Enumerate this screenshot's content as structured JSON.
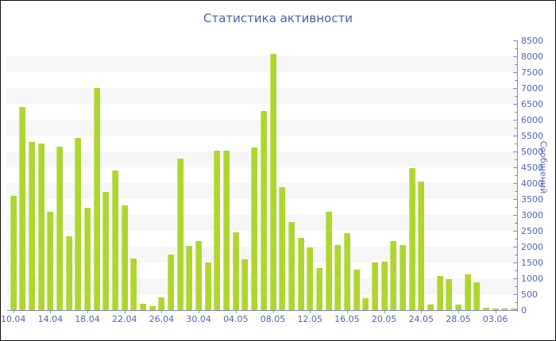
{
  "title": "Статистика активности",
  "y_axis": {
    "label": "Сообщений",
    "min": 0,
    "max": 8500,
    "step": 500,
    "tick_labels": [
      "0",
      "500",
      "1000",
      "1500",
      "2000",
      "2500",
      "3000",
      "3500",
      "4000",
      "4500",
      "5000",
      "5500",
      "6000",
      "6500",
      "7000",
      "7500",
      "8000",
      "8500"
    ]
  },
  "x_axis": {
    "tick_labels": [
      "10.04",
      "14.04",
      "18.04",
      "22.04",
      "26.04",
      "30.04",
      "04.05",
      "08.05",
      "12.05",
      "16.05",
      "20.05",
      "24.05",
      "28.05",
      "03.06"
    ],
    "ticks_every_n_bars": 4,
    "first_tick_bar_index": 0
  },
  "chart_data": {
    "type": "bar",
    "title": "Статистика активности",
    "xlabel": "",
    "ylabel": "Сообщений",
    "ylim": [
      0,
      8500
    ],
    "grid": "horizontal alternating stripes every 500, y-axis on right side",
    "legend": "none",
    "bar_color": "#aed62f",
    "x_tick_labels": [
      "10.04",
      "14.04",
      "18.04",
      "22.04",
      "26.04",
      "30.04",
      "04.05",
      "08.05",
      "12.05",
      "16.05",
      "20.05",
      "24.05",
      "28.05",
      "03.06"
    ],
    "values": [
      3600,
      6400,
      5300,
      5250,
      3100,
      5150,
      2330,
      5430,
      3230,
      7000,
      3720,
      4400,
      3300,
      1620,
      200,
      130,
      400,
      1750,
      4770,
      2030,
      2180,
      1500,
      5030,
      5030,
      2460,
      1600,
      5130,
      6280,
      8070,
      3880,
      2770,
      2270,
      1980,
      1330,
      3100,
      2050,
      2430,
      1270,
      380,
      1510,
      1530,
      2180,
      2050,
      4480,
      4040,
      180,
      1080,
      975,
      180,
      1120,
      875,
      80,
      40,
      40,
      40
    ]
  },
  "colors": {
    "bar": "#aed62f",
    "title_text": "#48619c",
    "axis_text": "#5063b2",
    "axis_line": "#7d8bbd",
    "stripe": "#f6f6f6",
    "background": "#ffffff",
    "border": "#111111"
  }
}
